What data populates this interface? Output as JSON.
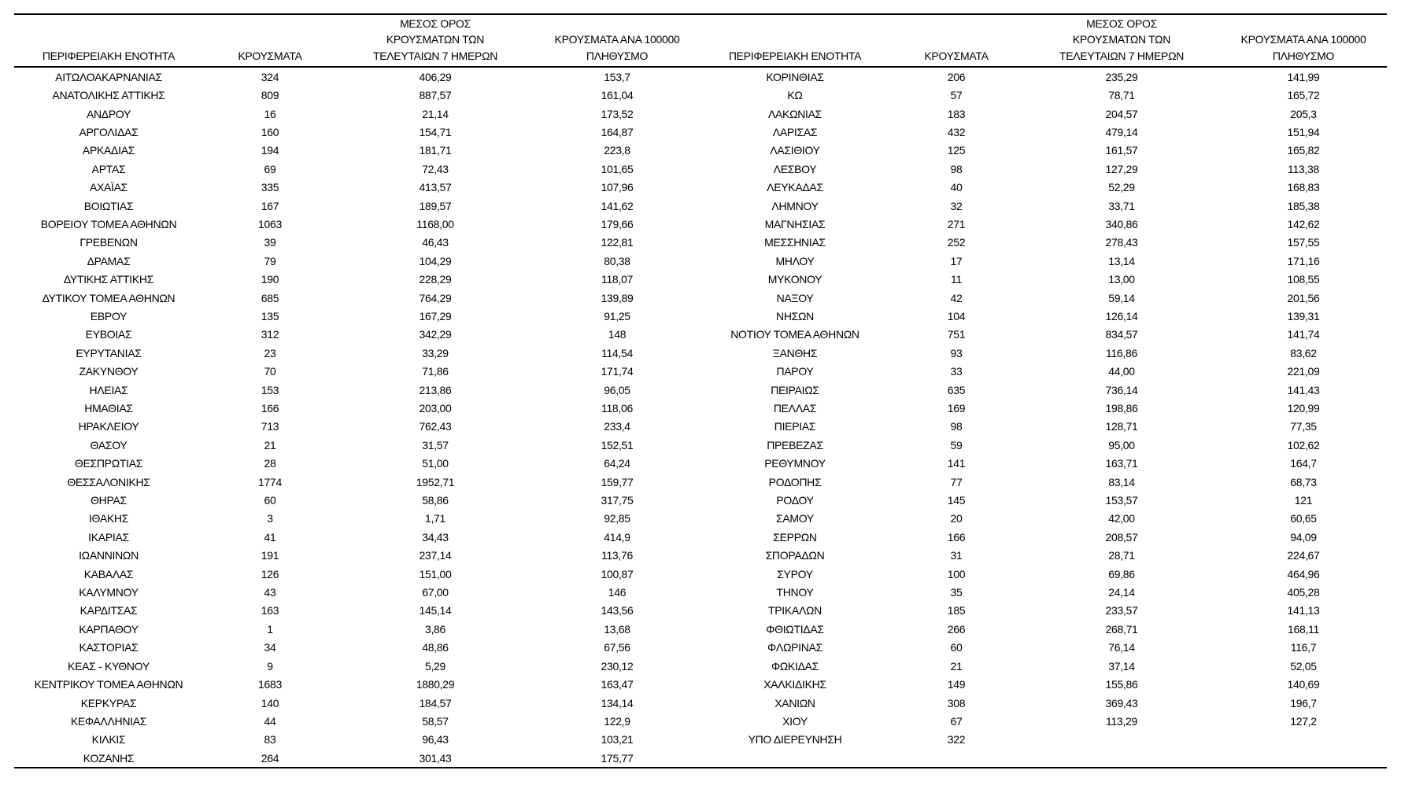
{
  "colors": {
    "background": "#ffffff",
    "text": "#000000",
    "border": "#000000"
  },
  "table": {
    "headers": {
      "region": "ΠΕΡΙΦΕΡΕΙΑΚΗ ΕΝΟΤΗΤΑ",
      "cases": "ΚΡΟΥΣΜΑΤΑ",
      "avg7_lines": [
        "ΜΕΣΟΣ ΟΡΟΣ",
        "ΚΡΟΥΣΜΑΤΩΝ ΤΩΝ",
        "ΤΕΛΕΥΤΑΙΩΝ 7 ΗΜΕΡΩΝ"
      ],
      "per100k_lines": [
        "ΚΡΟΥΣΜΑΤΑ ΑΝΑ 100000",
        "ΠΛΗΘΥΣΜΟ"
      ]
    },
    "left_rows": [
      {
        "region": "ΑΙΤΩΛΟΑΚΑΡΝΑΝΙΑΣ",
        "cases": "324",
        "avg7": "406,29",
        "per100k": "153,7"
      },
      {
        "region": "ΑΝΑΤΟΛΙΚΗΣ ΑΤΤΙΚΗΣ",
        "cases": "809",
        "avg7": "887,57",
        "per100k": "161,04"
      },
      {
        "region": "ΑΝΔΡΟΥ",
        "cases": "16",
        "avg7": "21,14",
        "per100k": "173,52"
      },
      {
        "region": "ΑΡΓΟΛΙΔΑΣ",
        "cases": "160",
        "avg7": "154,71",
        "per100k": "164,87"
      },
      {
        "region": "ΑΡΚΑΔΙΑΣ",
        "cases": "194",
        "avg7": "181,71",
        "per100k": "223,8"
      },
      {
        "region": "ΑΡΤΑΣ",
        "cases": "69",
        "avg7": "72,43",
        "per100k": "101,65"
      },
      {
        "region": "ΑΧΑΪΑΣ",
        "cases": "335",
        "avg7": "413,57",
        "per100k": "107,96"
      },
      {
        "region": "ΒΟΙΩΤΙΑΣ",
        "cases": "167",
        "avg7": "189,57",
        "per100k": "141,62"
      },
      {
        "region": "ΒΟΡΕΙΟΥ ΤΟΜΕΑ ΑΘΗΝΩΝ",
        "cases": "1063",
        "avg7": "1168,00",
        "per100k": "179,66"
      },
      {
        "region": "ΓΡΕΒΕΝΩΝ",
        "cases": "39",
        "avg7": "46,43",
        "per100k": "122,81"
      },
      {
        "region": "ΔΡΑΜΑΣ",
        "cases": "79",
        "avg7": "104,29",
        "per100k": "80,38"
      },
      {
        "region": "ΔΥΤΙΚΗΣ ΑΤΤΙΚΗΣ",
        "cases": "190",
        "avg7": "228,29",
        "per100k": "118,07"
      },
      {
        "region": "ΔΥΤΙΚΟΥ ΤΟΜΕΑ ΑΘΗΝΩΝ",
        "cases": "685",
        "avg7": "764,29",
        "per100k": "139,89"
      },
      {
        "region": "ΕΒΡΟΥ",
        "cases": "135",
        "avg7": "167,29",
        "per100k": "91,25"
      },
      {
        "region": "ΕΥΒΟΙΑΣ",
        "cases": "312",
        "avg7": "342,29",
        "per100k": "148"
      },
      {
        "region": "ΕΥΡΥΤΑΝΙΑΣ",
        "cases": "23",
        "avg7": "33,29",
        "per100k": "114,54"
      },
      {
        "region": "ΖΑΚΥΝΘΟΥ",
        "cases": "70",
        "avg7": "71,86",
        "per100k": "171,74"
      },
      {
        "region": "ΗΛΕΙΑΣ",
        "cases": "153",
        "avg7": "213,86",
        "per100k": "96,05"
      },
      {
        "region": "ΗΜΑΘΙΑΣ",
        "cases": "166",
        "avg7": "203,00",
        "per100k": "118,06"
      },
      {
        "region": "ΗΡΑΚΛΕΙΟΥ",
        "cases": "713",
        "avg7": "762,43",
        "per100k": "233,4"
      },
      {
        "region": "ΘΑΣΟΥ",
        "cases": "21",
        "avg7": "31,57",
        "per100k": "152,51"
      },
      {
        "region": "ΘΕΣΠΡΩΤΙΑΣ",
        "cases": "28",
        "avg7": "51,00",
        "per100k": "64,24"
      },
      {
        "region": "ΘΕΣΣΑΛΟΝΙΚΗΣ",
        "cases": "1774",
        "avg7": "1952,71",
        "per100k": "159,77"
      },
      {
        "region": "ΘΗΡΑΣ",
        "cases": "60",
        "avg7": "58,86",
        "per100k": "317,75"
      },
      {
        "region": "ΙΘΑΚΗΣ",
        "cases": "3",
        "avg7": "1,71",
        "per100k": "92,85"
      },
      {
        "region": "ΙΚΑΡΙΑΣ",
        "cases": "41",
        "avg7": "34,43",
        "per100k": "414,9"
      },
      {
        "region": "ΙΩΑΝΝΙΝΩΝ",
        "cases": "191",
        "avg7": "237,14",
        "per100k": "113,76"
      },
      {
        "region": "ΚΑΒΑΛΑΣ",
        "cases": "126",
        "avg7": "151,00",
        "per100k": "100,87"
      },
      {
        "region": "ΚΑΛΥΜΝΟΥ",
        "cases": "43",
        "avg7": "67,00",
        "per100k": "146"
      },
      {
        "region": "ΚΑΡΔΙΤΣΑΣ",
        "cases": "163",
        "avg7": "145,14",
        "per100k": "143,56"
      },
      {
        "region": "ΚΑΡΠΑΘΟΥ",
        "cases": "1",
        "avg7": "3,86",
        "per100k": "13,68"
      },
      {
        "region": "ΚΑΣΤΟΡΙΑΣ",
        "cases": "34",
        "avg7": "48,86",
        "per100k": "67,56"
      },
      {
        "region": "ΚΕΑΣ - ΚΥΘΝΟΥ",
        "cases": "9",
        "avg7": "5,29",
        "per100k": "230,12"
      },
      {
        "region": "ΚΕΝΤΡΙΚΟΥ ΤΟΜΕΑ ΑΘΗΝΩΝ",
        "cases": "1683",
        "avg7": "1880,29",
        "per100k": "163,47"
      },
      {
        "region": "ΚΕΡΚΥΡΑΣ",
        "cases": "140",
        "avg7": "184,57",
        "per100k": "134,14"
      },
      {
        "region": "ΚΕΦΑΛΛΗΝΙΑΣ",
        "cases": "44",
        "avg7": "58,57",
        "per100k": "122,9"
      },
      {
        "region": "ΚΙΛΚΙΣ",
        "cases": "83",
        "avg7": "96,43",
        "per100k": "103,21"
      },
      {
        "region": "ΚΟΖΑΝΗΣ",
        "cases": "264",
        "avg7": "301,43",
        "per100k": "175,77"
      }
    ],
    "right_rows": [
      {
        "region": "ΚΟΡΙΝΘΙΑΣ",
        "cases": "206",
        "avg7": "235,29",
        "per100k": "141,99"
      },
      {
        "region": "ΚΩ",
        "cases": "57",
        "avg7": "78,71",
        "per100k": "165,72"
      },
      {
        "region": "ΛΑΚΩΝΙΑΣ",
        "cases": "183",
        "avg7": "204,57",
        "per100k": "205,3"
      },
      {
        "region": "ΛΑΡΙΣΑΣ",
        "cases": "432",
        "avg7": "479,14",
        "per100k": "151,94"
      },
      {
        "region": "ΛΑΣΙΘΙΟΥ",
        "cases": "125",
        "avg7": "161,57",
        "per100k": "165,82"
      },
      {
        "region": "ΛΕΣΒΟΥ",
        "cases": "98",
        "avg7": "127,29",
        "per100k": "113,38"
      },
      {
        "region": "ΛΕΥΚΑΔΑΣ",
        "cases": "40",
        "avg7": "52,29",
        "per100k": "168,83"
      },
      {
        "region": "ΛΗΜΝΟΥ",
        "cases": "32",
        "avg7": "33,71",
        "per100k": "185,38"
      },
      {
        "region": "ΜΑΓΝΗΣΙΑΣ",
        "cases": "271",
        "avg7": "340,86",
        "per100k": "142,62"
      },
      {
        "region": "ΜΕΣΣΗΝΙΑΣ",
        "cases": "252",
        "avg7": "278,43",
        "per100k": "157,55"
      },
      {
        "region": "ΜΗΛΟΥ",
        "cases": "17",
        "avg7": "13,14",
        "per100k": "171,16"
      },
      {
        "region": "ΜΥΚΟΝΟΥ",
        "cases": "11",
        "avg7": "13,00",
        "per100k": "108,55"
      },
      {
        "region": "ΝΑΞΟΥ",
        "cases": "42",
        "avg7": "59,14",
        "per100k": "201,56"
      },
      {
        "region": "ΝΗΣΩΝ",
        "cases": "104",
        "avg7": "126,14",
        "per100k": "139,31"
      },
      {
        "region": "ΝΟΤΙΟΥ ΤΟΜΕΑ ΑΘΗΝΩΝ",
        "cases": "751",
        "avg7": "834,57",
        "per100k": "141,74"
      },
      {
        "region": "ΞΑΝΘΗΣ",
        "cases": "93",
        "avg7": "116,86",
        "per100k": "83,62"
      },
      {
        "region": "ΠΑΡΟΥ",
        "cases": "33",
        "avg7": "44,00",
        "per100k": "221,09"
      },
      {
        "region": "ΠΕΙΡΑΙΩΣ",
        "cases": "635",
        "avg7": "736,14",
        "per100k": "141,43"
      },
      {
        "region": "ΠΕΛΛΑΣ",
        "cases": "169",
        "avg7": "198,86",
        "per100k": "120,99"
      },
      {
        "region": "ΠΙΕΡΙΑΣ",
        "cases": "98",
        "avg7": "128,71",
        "per100k": "77,35"
      },
      {
        "region": "ΠΡΕΒΕΖΑΣ",
        "cases": "59",
        "avg7": "95,00",
        "per100k": "102,62"
      },
      {
        "region": "ΡΕΘΥΜΝΟΥ",
        "cases": "141",
        "avg7": "163,71",
        "per100k": "164,7"
      },
      {
        "region": "ΡΟΔΟΠΗΣ",
        "cases": "77",
        "avg7": "83,14",
        "per100k": "68,73"
      },
      {
        "region": "ΡΟΔΟΥ",
        "cases": "145",
        "avg7": "153,57",
        "per100k": "121"
      },
      {
        "region": "ΣΑΜΟΥ",
        "cases": "20",
        "avg7": "42,00",
        "per100k": "60,65"
      },
      {
        "region": "ΣΕΡΡΩΝ",
        "cases": "166",
        "avg7": "208,57",
        "per100k": "94,09"
      },
      {
        "region": "ΣΠΟΡΑΔΩΝ",
        "cases": "31",
        "avg7": "28,71",
        "per100k": "224,67"
      },
      {
        "region": "ΣΥΡΟΥ",
        "cases": "100",
        "avg7": "69,86",
        "per100k": "464,96"
      },
      {
        "region": "ΤΗΝΟΥ",
        "cases": "35",
        "avg7": "24,14",
        "per100k": "405,28"
      },
      {
        "region": "ΤΡΙΚΑΛΩΝ",
        "cases": "185",
        "avg7": "233,57",
        "per100k": "141,13"
      },
      {
        "region": "ΦΘΙΩΤΙΔΑΣ",
        "cases": "266",
        "avg7": "268,71",
        "per100k": "168,11"
      },
      {
        "region": "ΦΛΩΡΙΝΑΣ",
        "cases": "60",
        "avg7": "76,14",
        "per100k": "116,7"
      },
      {
        "region": "ΦΩΚΙΔΑΣ",
        "cases": "21",
        "avg7": "37,14",
        "per100k": "52,05"
      },
      {
        "region": "ΧΑΛΚΙΔΙΚΗΣ",
        "cases": "149",
        "avg7": "155,86",
        "per100k": "140,69"
      },
      {
        "region": "ΧΑΝΙΩΝ",
        "cases": "308",
        "avg7": "369,43",
        "per100k": "196,7"
      },
      {
        "region": "ΧΙΟΥ",
        "cases": "67",
        "avg7": "113,29",
        "per100k": "127,2"
      },
      {
        "region": "ΥΠΟ ΔΙΕΡΕΥΝΗΣΗ",
        "cases": "322",
        "avg7": "",
        "per100k": ""
      }
    ]
  }
}
